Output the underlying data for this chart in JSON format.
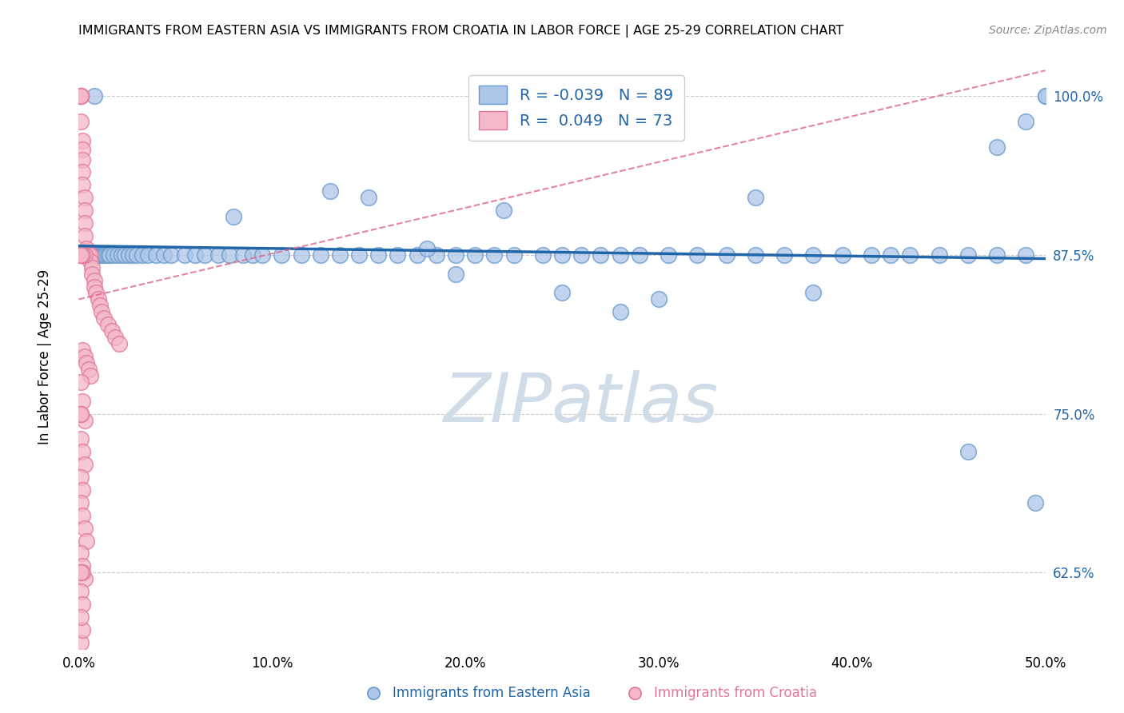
{
  "title": "IMMIGRANTS FROM EASTERN ASIA VS IMMIGRANTS FROM CROATIA IN LABOR FORCE | AGE 25-29 CORRELATION CHART",
  "source": "Source: ZipAtlas.com",
  "ylabel": "In Labor Force | Age 25-29",
  "legend_label1": "Immigrants from Eastern Asia",
  "legend_label2": "Immigrants from Croatia",
  "R1": -0.039,
  "N1": 89,
  "R2": 0.049,
  "N2": 73,
  "xlim": [
    0.0,
    0.5
  ],
  "ylim": [
    0.565,
    1.025
  ],
  "yticks": [
    0.625,
    0.75,
    0.875,
    1.0
  ],
  "ytick_labels": [
    "62.5%",
    "75.0%",
    "87.5%",
    "100.0%"
  ],
  "xticks": [
    0.0,
    0.1,
    0.2,
    0.3,
    0.4,
    0.5
  ],
  "xtick_labels": [
    "0.0%",
    "10.0%",
    "20.0%",
    "30.0%",
    "40.0%",
    "50.0%"
  ],
  "blue_color": "#aec6e8",
  "blue_edge": "#6699cc",
  "pink_color": "#f4b8c8",
  "pink_edge": "#e07898",
  "trend_blue": "#2266aa",
  "trend_pink": "#dd6688",
  "tick_color": "#2266aa",
  "watermark_color": "#d0dce8",
  "blue_x": [
    0.001,
    0.002,
    0.003,
    0.003,
    0.004,
    0.005,
    0.005,
    0.006,
    0.007,
    0.008,
    0.009,
    0.01,
    0.011,
    0.012,
    0.013,
    0.014,
    0.015,
    0.016,
    0.018,
    0.02,
    0.022,
    0.024,
    0.026,
    0.028,
    0.03,
    0.033,
    0.036,
    0.04,
    0.044,
    0.048,
    0.055,
    0.06,
    0.065,
    0.072,
    0.078,
    0.085,
    0.09,
    0.095,
    0.105,
    0.115,
    0.125,
    0.135,
    0.145,
    0.155,
    0.165,
    0.175,
    0.185,
    0.195,
    0.205,
    0.215,
    0.225,
    0.24,
    0.25,
    0.26,
    0.27,
    0.28,
    0.29,
    0.305,
    0.32,
    0.335,
    0.35,
    0.365,
    0.38,
    0.395,
    0.41,
    0.43,
    0.445,
    0.46,
    0.475,
    0.49,
    0.5,
    0.5,
    0.49,
    0.475,
    0.008,
    0.35,
    0.22,
    0.15,
    0.08,
    0.13,
    0.18,
    0.25,
    0.3,
    0.38,
    0.42,
    0.46,
    0.495,
    0.28,
    0.195
  ],
  "blue_y": [
    0.875,
    0.875,
    0.875,
    0.875,
    0.875,
    0.875,
    0.875,
    0.875,
    0.875,
    0.875,
    0.875,
    0.875,
    0.875,
    0.875,
    0.875,
    0.875,
    0.875,
    0.875,
    0.875,
    0.875,
    0.875,
    0.875,
    0.875,
    0.875,
    0.875,
    0.875,
    0.875,
    0.875,
    0.875,
    0.875,
    0.875,
    0.875,
    0.875,
    0.875,
    0.875,
    0.875,
    0.875,
    0.875,
    0.875,
    0.875,
    0.875,
    0.875,
    0.875,
    0.875,
    0.875,
    0.875,
    0.875,
    0.875,
    0.875,
    0.875,
    0.875,
    0.875,
    0.875,
    0.875,
    0.875,
    0.875,
    0.875,
    0.875,
    0.875,
    0.875,
    0.875,
    0.875,
    0.875,
    0.875,
    0.875,
    0.875,
    0.875,
    0.875,
    0.875,
    0.875,
    1.0,
    1.0,
    0.98,
    0.96,
    1.0,
    0.92,
    0.91,
    0.92,
    0.905,
    0.925,
    0.88,
    0.845,
    0.84,
    0.845,
    0.875,
    0.72,
    0.68,
    0.83,
    0.86
  ],
  "pink_x": [
    0.001,
    0.001,
    0.001,
    0.001,
    0.001,
    0.002,
    0.002,
    0.002,
    0.002,
    0.002,
    0.003,
    0.003,
    0.003,
    0.003,
    0.004,
    0.004,
    0.004,
    0.005,
    0.005,
    0.005,
    0.006,
    0.006,
    0.007,
    0.007,
    0.008,
    0.008,
    0.009,
    0.01,
    0.011,
    0.012,
    0.013,
    0.015,
    0.017,
    0.019,
    0.021,
    0.002,
    0.003,
    0.004,
    0.005,
    0.006,
    0.001,
    0.002,
    0.003,
    0.001,
    0.002,
    0.003,
    0.001,
    0.002,
    0.001,
    0.002,
    0.003,
    0.004,
    0.001,
    0.002,
    0.003,
    0.001,
    0.002,
    0.001,
    0.002,
    0.001,
    0.001,
    0.001,
    0.001,
    0.001,
    0.002,
    0.001,
    0.002,
    0.003,
    0.002,
    0.001,
    0.001,
    0.002,
    0.001
  ],
  "pink_y": [
    1.0,
    1.0,
    1.0,
    1.0,
    0.98,
    0.965,
    0.958,
    0.95,
    0.94,
    0.93,
    0.92,
    0.91,
    0.9,
    0.89,
    0.88,
    0.875,
    0.875,
    0.875,
    0.875,
    0.875,
    0.875,
    0.87,
    0.865,
    0.86,
    0.855,
    0.85,
    0.845,
    0.84,
    0.835,
    0.83,
    0.825,
    0.82,
    0.815,
    0.81,
    0.805,
    0.8,
    0.795,
    0.79,
    0.785,
    0.78,
    0.775,
    0.76,
    0.745,
    0.73,
    0.72,
    0.71,
    0.7,
    0.69,
    0.68,
    0.67,
    0.66,
    0.65,
    0.64,
    0.63,
    0.62,
    0.61,
    0.6,
    0.625,
    0.625,
    0.625,
    0.75,
    0.75,
    0.75,
    0.875,
    0.875,
    0.875,
    0.875,
    0.875,
    0.875,
    0.875,
    0.57,
    0.58,
    0.59
  ],
  "blue_trend_x": [
    0.0,
    0.5
  ],
  "blue_trend_y": [
    0.882,
    0.872
  ],
  "pink_trend_x": [
    0.0,
    0.5
  ],
  "pink_trend_y": [
    0.84,
    1.02
  ]
}
